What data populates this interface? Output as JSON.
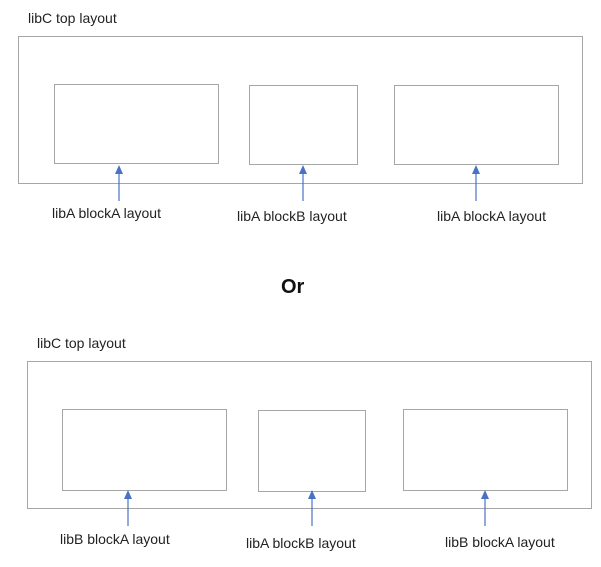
{
  "colors": {
    "box_border": "#a6a6a6",
    "arrow": "#4a72c4"
  },
  "top_diagram": {
    "title": "libC top layout",
    "blocks": [
      {
        "label": "libA blockA layout"
      },
      {
        "label": "libA blockB layout"
      },
      {
        "label": "libA blockA layout"
      }
    ]
  },
  "separator": {
    "label": "Or"
  },
  "bottom_diagram": {
    "title": "libC top layout",
    "blocks": [
      {
        "label": "libB blockA layout"
      },
      {
        "label": "libA blockB layout"
      },
      {
        "label": "libB blockA layout"
      }
    ]
  }
}
